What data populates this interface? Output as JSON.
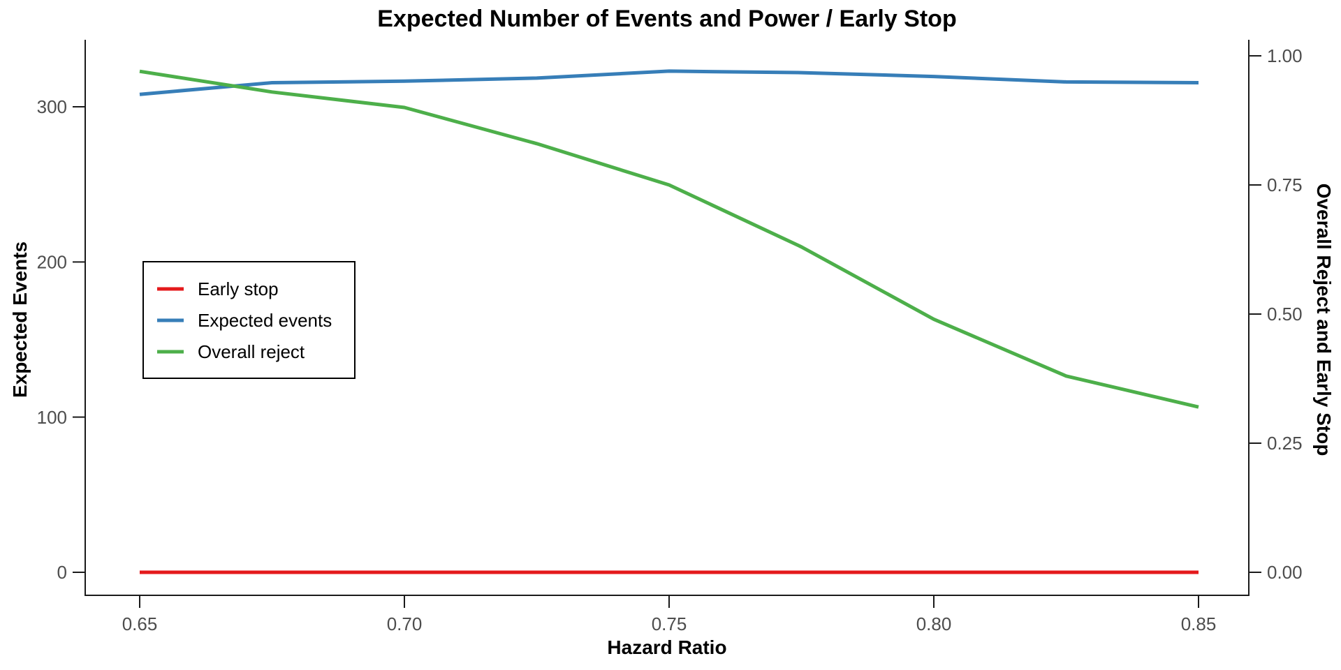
{
  "title": "Expected Number of Events and Power / Early Stop",
  "axes": {
    "x": {
      "label": "Hazard Ratio",
      "ticks": [
        "0.65",
        "0.70",
        "0.75",
        "0.80",
        "0.85"
      ],
      "tick_values": [
        0.65,
        0.7,
        0.75,
        0.8,
        0.85
      ]
    },
    "y_left": {
      "label": "Expected Events",
      "ticks": [
        "0",
        "100",
        "200",
        "300"
      ],
      "tick_values": [
        0,
        100,
        200,
        300
      ]
    },
    "y_right": {
      "label": "Overall Reject and Early Stop",
      "ticks": [
        "0.00",
        "0.25",
        "0.50",
        "0.75",
        "1.00"
      ],
      "tick_values": [
        0,
        0.25,
        0.5,
        0.75,
        1
      ]
    }
  },
  "legend": {
    "items": [
      {
        "label": "Early stop",
        "color": "#E41A1C"
      },
      {
        "label": "Expected events",
        "color": "#377EB8"
      },
      {
        "label": "Overall reject",
        "color": "#4DAF4A"
      }
    ]
  },
  "colors": {
    "early_stop": "#E41A1C",
    "expected_events": "#377EB8",
    "overall_reject": "#4DAF4A",
    "spine": "#1a1a1a",
    "tick_text": "#4d4d4d",
    "background": "#ffffff"
  },
  "chart_data": {
    "type": "line",
    "title": "Expected Number of Events and Power / Early Stop",
    "xlabel": "Hazard Ratio",
    "ylabel_left": "Expected Events",
    "ylabel_right": "Overall Reject and Early Stop",
    "x": [
      0.65,
      0.675,
      0.7,
      0.725,
      0.75,
      0.775,
      0.8,
      0.825,
      0.85
    ],
    "series": [
      {
        "name": "Early stop",
        "axis": "right",
        "color": "#E41A1C",
        "values": [
          0,
          0,
          0,
          0,
          0,
          0,
          0,
          0,
          0
        ]
      },
      {
        "name": "Expected events",
        "axis": "left",
        "color": "#377EB8",
        "values": [
          308,
          315.5,
          316.5,
          318.5,
          323,
          322,
          319.5,
          316,
          315.5
        ]
      },
      {
        "name": "Overall reject",
        "axis": "right",
        "color": "#4DAF4A",
        "values": [
          0.97,
          0.93,
          0.9,
          0.83,
          0.75,
          0.63,
          0.49,
          0.38,
          0.32
        ]
      }
    ],
    "xlim": [
      0.65,
      0.85
    ],
    "ylim_left": [
      0,
      340
    ],
    "ylim_right": [
      0,
      1.03
    ],
    "grid": false,
    "legend_position": "left-middle",
    "line_width": 5
  }
}
